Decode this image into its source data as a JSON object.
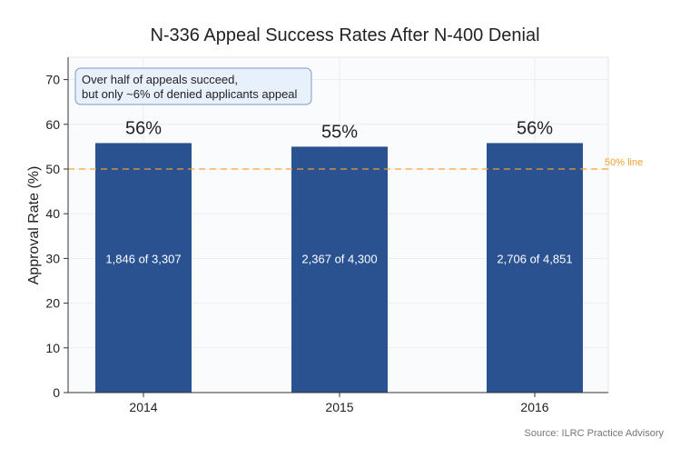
{
  "chart_data": {
    "type": "bar",
    "title": "N-336 Appeal Success Rates After N-400 Denial",
    "xlabel": "",
    "ylabel": "Approval Rate (%)",
    "categories": [
      "2014",
      "2015",
      "2016"
    ],
    "values": [
      55.8,
      55.0,
      55.8
    ],
    "data_labels": [
      "56%",
      "55%",
      "56%"
    ],
    "bar_inner_labels": [
      "1,846 of 3,307",
      "2,367 of 4,300",
      "2,706 of 4,851"
    ],
    "ylim": [
      0,
      75
    ],
    "yticks": [
      0,
      10,
      20,
      30,
      40,
      50,
      60,
      70
    ],
    "grid": true,
    "reference_line": {
      "value": 50,
      "label": "50% line",
      "color": "#f5a030"
    },
    "annotation": [
      "Over half of appeals succeed,",
      "but only ~6% of denied applicants appeal"
    ],
    "source": "Source: ILRC Practice Advisory",
    "colors": {
      "bar": "#2a5291",
      "annotation_bg": "#e8f0fb",
      "annotation_border": "#7f98c4"
    }
  }
}
